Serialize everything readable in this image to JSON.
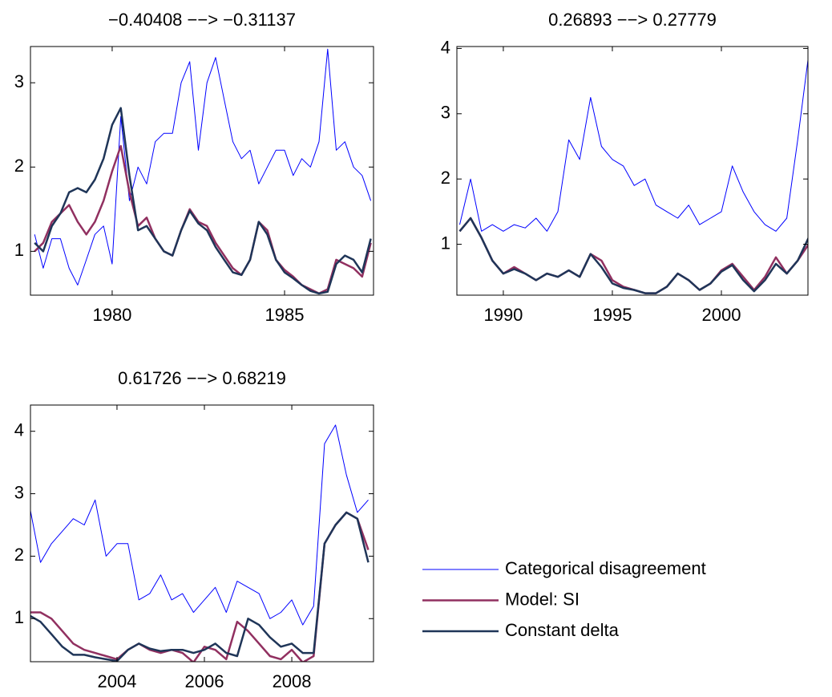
{
  "chart_data": [
    {
      "type": "line",
      "title": "−0.40408 −−> −0.31137",
      "x": [
        1977.75,
        1978.0,
        1978.25,
        1978.5,
        1978.75,
        1979.0,
        1979.25,
        1979.5,
        1979.75,
        1980.0,
        1980.25,
        1980.5,
        1980.75,
        1981.0,
        1981.25,
        1981.5,
        1981.75,
        1982.0,
        1982.25,
        1982.5,
        1982.75,
        1983.0,
        1983.25,
        1983.5,
        1983.75,
        1984.0,
        1984.25,
        1984.5,
        1984.75,
        1985.0,
        1985.25,
        1985.5,
        1985.75,
        1986.0,
        1986.25,
        1986.5,
        1986.75,
        1987.0,
        1987.25,
        1987.5
      ],
      "xlim": [
        1977.63,
        1987.58
      ],
      "xticks": [
        1980,
        1985
      ],
      "ylim": [
        0.48,
        3.43
      ],
      "yticks": [
        1,
        2,
        3
      ],
      "series": [
        {
          "name": "Categorical disagreement",
          "color": "#0000ff",
          "values": [
            1.2,
            0.8,
            1.15,
            1.15,
            0.8,
            0.6,
            0.9,
            1.2,
            1.3,
            0.85,
            2.6,
            1.6,
            2.0,
            1.8,
            2.3,
            2.4,
            2.4,
            3.0,
            3.25,
            2.2,
            3.0,
            3.3,
            2.8,
            2.3,
            2.1,
            2.2,
            1.8,
            2.0,
            2.2,
            2.2,
            1.9,
            2.1,
            2.0,
            2.3,
            3.4,
            2.2,
            2.3,
            2.0,
            1.9,
            1.6
          ]
        },
        {
          "name": "Model: SI",
          "color": "#913060",
          "values": [
            1.0,
            1.1,
            1.35,
            1.45,
            1.55,
            1.35,
            1.2,
            1.35,
            1.6,
            1.95,
            2.25,
            1.7,
            1.3,
            1.4,
            1.15,
            1.0,
            0.95,
            1.25,
            1.5,
            1.35,
            1.3,
            1.1,
            0.95,
            0.8,
            0.72,
            0.9,
            1.35,
            1.25,
            0.9,
            0.78,
            0.7,
            0.6,
            0.55,
            0.5,
            0.55,
            0.9,
            0.85,
            0.8,
            0.7,
            1.1
          ]
        },
        {
          "name": "Constant delta",
          "color": "#1f3558",
          "values": [
            1.1,
            1.0,
            1.3,
            1.45,
            1.7,
            1.75,
            1.7,
            1.85,
            2.1,
            2.5,
            2.7,
            1.9,
            1.25,
            1.3,
            1.15,
            1.0,
            0.95,
            1.25,
            1.48,
            1.33,
            1.25,
            1.05,
            0.9,
            0.75,
            0.72,
            0.9,
            1.35,
            1.2,
            0.9,
            0.75,
            0.68,
            0.6,
            0.53,
            0.5,
            0.52,
            0.85,
            0.95,
            0.9,
            0.75,
            1.15
          ]
        }
      ]
    },
    {
      "type": "line",
      "title": "0.26893 −−> 0.27779",
      "x": [
        1988.0,
        1988.5,
        1989.0,
        1989.5,
        1990.0,
        1990.5,
        1991.0,
        1991.5,
        1992.0,
        1992.5,
        1993.0,
        1993.5,
        1994.0,
        1994.5,
        1995.0,
        1995.5,
        1996.0,
        1996.5,
        1997.0,
        1997.5,
        1998.0,
        1998.5,
        1999.0,
        1999.5,
        2000.0,
        2000.5,
        2001.0,
        2001.5,
        2002.0,
        2002.5,
        2003.0,
        2003.5,
        2004.0
      ],
      "xlim": [
        1987.87,
        2003.97
      ],
      "xticks": [
        1990,
        1995,
        2000
      ],
      "ylim": [
        0.22,
        4.03
      ],
      "yticks": [
        1,
        2,
        3,
        4
      ],
      "series": [
        {
          "name": "Categorical disagreement",
          "color": "#0000ff",
          "values": [
            1.3,
            2.0,
            1.2,
            1.3,
            1.2,
            1.3,
            1.25,
            1.4,
            1.2,
            1.5,
            2.6,
            2.3,
            3.25,
            2.5,
            2.3,
            2.2,
            1.9,
            2.0,
            1.6,
            1.5,
            1.4,
            1.6,
            1.3,
            1.4,
            1.5,
            2.2,
            1.8,
            1.5,
            1.3,
            1.2,
            1.4,
            2.6,
            3.9
          ]
        },
        {
          "name": "Model: SI",
          "color": "#913060",
          "values": [
            1.2,
            1.4,
            1.1,
            0.75,
            0.55,
            0.65,
            0.55,
            0.45,
            0.55,
            0.5,
            0.6,
            0.5,
            0.85,
            0.75,
            0.45,
            0.35,
            0.3,
            0.25,
            0.25,
            0.35,
            0.55,
            0.45,
            0.3,
            0.4,
            0.6,
            0.7,
            0.5,
            0.3,
            0.5,
            0.8,
            0.55,
            0.75,
            1.0
          ]
        },
        {
          "name": "Constant delta",
          "color": "#1f3558",
          "values": [
            1.2,
            1.4,
            1.1,
            0.75,
            0.55,
            0.62,
            0.55,
            0.45,
            0.55,
            0.5,
            0.6,
            0.5,
            0.85,
            0.65,
            0.4,
            0.33,
            0.3,
            0.25,
            0.25,
            0.35,
            0.55,
            0.45,
            0.3,
            0.4,
            0.58,
            0.68,
            0.45,
            0.28,
            0.45,
            0.7,
            0.55,
            0.75,
            1.1
          ]
        }
      ]
    },
    {
      "type": "line",
      "title": "0.61726 −−> 0.68219",
      "x": [
        2002.0,
        2002.25,
        2002.5,
        2002.75,
        2003.0,
        2003.25,
        2003.5,
        2003.75,
        2004.0,
        2004.25,
        2004.5,
        2004.75,
        2005.0,
        2005.25,
        2005.5,
        2005.75,
        2006.0,
        2006.25,
        2006.5,
        2006.75,
        2007.0,
        2007.25,
        2007.5,
        2007.75,
        2008.0,
        2008.25,
        2008.5,
        2008.75,
        2009.0,
        2009.25,
        2009.5,
        2009.75
      ],
      "xlim": [
        2002.02,
        2009.87
      ],
      "xticks": [
        2004,
        2006,
        2008
      ],
      "ylim": [
        0.31,
        4.42
      ],
      "yticks": [
        1,
        2,
        3,
        4
      ],
      "series": [
        {
          "name": "Categorical disagreement",
          "color": "#0000ff",
          "values": [
            2.8,
            1.9,
            2.2,
            2.4,
            2.6,
            2.5,
            2.9,
            2.0,
            2.2,
            2.2,
            1.3,
            1.4,
            1.7,
            1.3,
            1.4,
            1.1,
            1.3,
            1.5,
            1.1,
            1.6,
            1.5,
            1.4,
            1.0,
            1.1,
            1.3,
            0.9,
            1.2,
            3.8,
            4.1,
            3.3,
            2.7,
            2.9
          ]
        },
        {
          "name": "Model: SI",
          "color": "#913060",
          "values": [
            1.1,
            1.1,
            1.0,
            0.8,
            0.6,
            0.5,
            0.45,
            0.4,
            0.35,
            0.5,
            0.6,
            0.5,
            0.45,
            0.5,
            0.45,
            0.3,
            0.55,
            0.5,
            0.35,
            0.95,
            0.8,
            0.6,
            0.4,
            0.35,
            0.5,
            0.3,
            0.4,
            2.2,
            2.5,
            2.7,
            2.6,
            2.1
          ]
        },
        {
          "name": "Constant delta",
          "color": "#1f3558",
          "values": [
            1.05,
            0.95,
            0.75,
            0.55,
            0.42,
            0.42,
            0.38,
            0.35,
            0.32,
            0.5,
            0.6,
            0.52,
            0.48,
            0.5,
            0.5,
            0.45,
            0.5,
            0.6,
            0.45,
            0.4,
            1.0,
            0.9,
            0.7,
            0.55,
            0.6,
            0.45,
            0.45,
            2.2,
            2.5,
            2.7,
            2.6,
            1.9
          ]
        }
      ]
    }
  ]
}
